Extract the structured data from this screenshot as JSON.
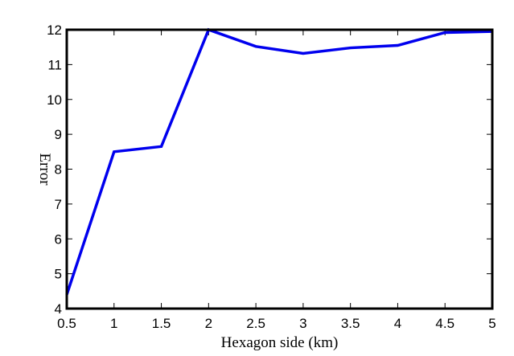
{
  "chart_data": {
    "type": "line",
    "xlabel": "Hexagon side (km)",
    "ylabel": "Error",
    "xlim": [
      0.5,
      5
    ],
    "ylim": [
      4,
      12
    ],
    "x_ticks": [
      "0.5",
      "1",
      "1.5",
      "2",
      "2.5",
      "3",
      "3.5",
      "4",
      "4.5",
      "5"
    ],
    "y_ticks": [
      "4",
      "5",
      "6",
      "7",
      "8",
      "9",
      "10",
      "11",
      "12"
    ],
    "grid": false,
    "series": [
      {
        "color": "#0000ee",
        "x": [
          0.5,
          1,
          1.5,
          2,
          2.5,
          3,
          3.5,
          4,
          4.5,
          5
        ],
        "y": [
          4.4,
          8.5,
          8.65,
          12.0,
          11.52,
          11.32,
          11.48,
          11.55,
          11.92,
          11.95
        ]
      }
    ]
  }
}
